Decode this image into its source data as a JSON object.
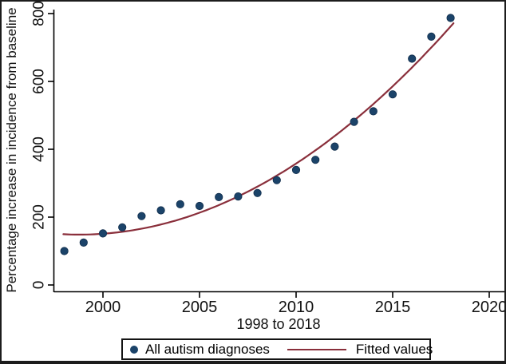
{
  "chart_data": {
    "type": "scatter",
    "title": "",
    "xlabel": "1998 to 2018",
    "ylabel": "Percentage increase in incidence from baseline",
    "x_ticks": [
      "2000",
      "2005",
      "2010",
      "2015",
      "2020"
    ],
    "x_tick_years": [
      2000,
      2005,
      2010,
      2015,
      2020
    ],
    "y_ticks": [
      "0",
      "200",
      "400",
      "600",
      "800"
    ],
    "y_tick_values": [
      0,
      200,
      400,
      600,
      800
    ],
    "xlim": [
      1997.4,
      2020.9
    ],
    "ylim": [
      0,
      802
    ],
    "grid": false,
    "legend_position": "bottom-center",
    "axis_color": "#000000",
    "series": [
      {
        "name": "All autism diagnoses",
        "type": "scatter",
        "marker": "circle",
        "color": "#1b4369",
        "x": [
          1998,
          1999,
          2000,
          2001,
          2002,
          2003,
          2004,
          2005,
          2006,
          2007,
          2008,
          2009,
          2010,
          2011,
          2012,
          2013,
          2014,
          2015,
          2016,
          2017,
          2018
        ],
        "y": [
          100,
          125,
          152,
          170,
          203,
          220,
          238,
          233,
          259,
          261,
          271,
          309,
          339,
          369,
          408,
          481,
          512,
          562,
          667,
          732,
          787
        ]
      },
      {
        "name": "Fitted values",
        "type": "line",
        "color": "#8a2f3b",
        "fit": {
          "kind": "quadratic",
          "base_year": 1998,
          "a": 149.4,
          "b": -2.51,
          "c": 1.657,
          "t_min": -0.05,
          "t_max": 20.15
        }
      }
    ]
  }
}
